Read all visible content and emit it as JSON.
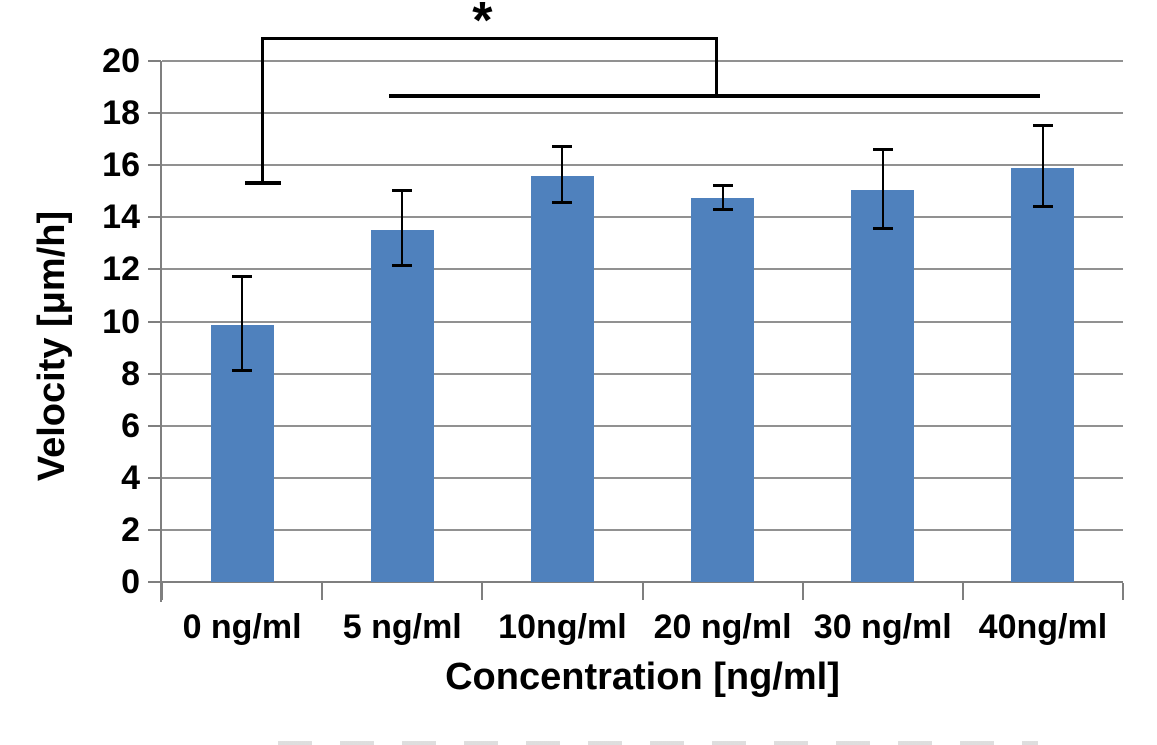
{
  "chart_data": {
    "type": "bar",
    "title": "",
    "xlabel": "Concentration [ng/ml]",
    "ylabel": "Velocity [μm/h]",
    "categories": [
      "0 ng/ml",
      "5 ng/ml",
      "10ng/ml",
      "20 ng/ml",
      "30 ng/ml",
      "40ng/ml"
    ],
    "values": [
      9.85,
      13.5,
      15.6,
      14.75,
      15.05,
      15.9
    ],
    "error_plus": [
      1.85,
      1.5,
      1.1,
      0.45,
      1.55,
      1.6
    ],
    "error_minus": [
      1.75,
      1.35,
      1.05,
      0.45,
      1.5,
      1.5
    ],
    "ylim": [
      0,
      20
    ],
    "ytick_step": 2,
    "ytick_labels": [
      "0",
      "2",
      "4",
      "6",
      "8",
      "10",
      "12",
      "14",
      "16",
      "18",
      "20"
    ],
    "grid": "horizontal-only",
    "legend": "none",
    "bar_color": "#4F81BD",
    "gridline_color": "#919191",
    "axis_color": "#7F7F7F",
    "error_bar_color": "#000000",
    "annotation": {
      "symbol": "*",
      "symbol_x_cat": 1.5,
      "bracket": {
        "top_value": 20.8,
        "left_x_cat": 0.13,
        "left_foot_value": 15.3,
        "right_x_cat": 2.965,
        "underline_value": 18.65,
        "underline_from_cat": 0.92,
        "underline_to_cat": 4.98
      }
    }
  }
}
